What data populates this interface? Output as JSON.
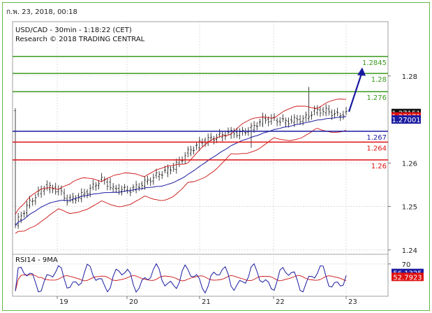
{
  "header": {
    "timestamp": "ก.พ. 23, 2018, 00:18"
  },
  "chart_data": {
    "type": "candlestick",
    "title": "USD/CAD - 30min - 1:18:22 (CET)",
    "subtitle": "Research © 2018 TRADING CENTRAL",
    "x_labels": [
      "19",
      "20",
      "21",
      "22",
      "23"
    ],
    "y_ticks": [
      "1.28",
      "1.26",
      "1.25",
      "1.24"
    ],
    "y_tick_values": [
      1.28,
      1.26,
      1.25,
      1.24
    ],
    "ylim": [
      1.239,
      1.2925
    ],
    "levels": [
      {
        "label": "1.2845",
        "value": 1.2845,
        "color": "#3a9a1c"
      },
      {
        "label": "1.28",
        "value": 1.2806,
        "color": "#3a9a1c"
      },
      {
        "label": "1.276",
        "value": 1.2764,
        "color": "#3a9a1c"
      },
      {
        "label": "1.267",
        "value": 1.2673,
        "color": "#1a1aa0"
      },
      {
        "label": "1.264",
        "value": 1.2648,
        "color": "#dd1111"
      },
      {
        "label": "1.26",
        "value": 1.2607,
        "color": "#dd1111"
      }
    ],
    "price_badges": [
      {
        "label": "1.27151",
        "value": 1.2715,
        "bg": "#111111",
        "fg": "#ffffff"
      },
      {
        "label": "1.27071",
        "value": 1.2707,
        "bg": "#dd1111",
        "fg": "#ffffff"
      },
      {
        "label": "1.27001",
        "value": 1.27,
        "bg": "#1a1aa0",
        "fg": "#ffffff"
      }
    ],
    "rsi": {
      "label": "RSI14 - 9MA",
      "ticks": [
        "70"
      ],
      "tick_values": [
        70
      ],
      "ylim": [
        20,
        85
      ],
      "badges": [
        {
          "label": "56.1325",
          "value": 56.1,
          "bg": "#1a1aa0",
          "fg": "#ffffff"
        },
        {
          "label": "52.7923",
          "value": 50.0,
          "bg": "#dd1111",
          "fg": "#ffffff"
        }
      ]
    },
    "colors": {
      "candles": "#111111",
      "ma": "#1a1aa0",
      "bollinger": "#cc1111",
      "rsi": "#1a1aa0",
      "rsi_ma": "#cc1111",
      "arrow": "#1a1aa0"
    }
  }
}
